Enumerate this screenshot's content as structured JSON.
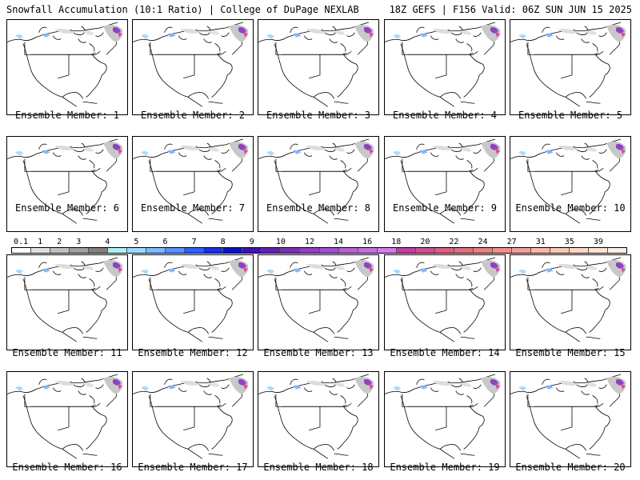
{
  "header": {
    "left": "Snowfall Accumulation (10:1 Ratio) | College of DuPage NEXLAB",
    "right": "18Z GEFS | F156 Valid: 06Z SUN JUN 15 2025"
  },
  "panels": [
    {
      "label": "Ensemble Member: 1"
    },
    {
      "label": "Ensemble Member: 2"
    },
    {
      "label": "Ensemble Member: 3"
    },
    {
      "label": "Ensemble Member: 4"
    },
    {
      "label": "Ensemble Member: 5"
    },
    {
      "label": "Ensemble Member: 6"
    },
    {
      "label": "Ensemble Member: 7"
    },
    {
      "label": "Ensemble Member: 8"
    },
    {
      "label": "Ensemble Member: 9"
    },
    {
      "label": "Ensemble Member: 10"
    },
    {
      "label": "Ensemble Member: 11"
    },
    {
      "label": "Ensemble Member: 12"
    },
    {
      "label": "Ensemble Member: 13"
    },
    {
      "label": "Ensemble Member: 14"
    },
    {
      "label": "Ensemble Member: 15"
    },
    {
      "label": "Ensemble Member: 16"
    },
    {
      "label": "Ensemble Member: 17"
    },
    {
      "label": "Ensemble Member: 18"
    },
    {
      "label": "Ensemble Member: 19"
    },
    {
      "label": "Ensemble Member: 20"
    }
  ],
  "colorbar": {
    "ticks": [
      "0.1",
      "1",
      "2",
      "3",
      "4",
      "5",
      "6",
      "7",
      "8",
      "9",
      "10",
      "12",
      "14",
      "16",
      "18",
      "20",
      "22",
      "24",
      "27",
      "31",
      "35",
      "39"
    ],
    "colors": [
      "#ffffff",
      "#e0e0e0",
      "#c0c0c0",
      "#a0a0a0",
      "#808080",
      "#b0f0f0",
      "#a0d8ff",
      "#80b8ff",
      "#5c90ff",
      "#3060ff",
      "#1a30e0",
      "#1010c0",
      "#4010b0",
      "#6020b0",
      "#7a30b8",
      "#9040c0",
      "#a050d0",
      "#b860d8",
      "#c070e0",
      "#d080e8",
      "#c040a0",
      "#d05090",
      "#e06080",
      "#e07080",
      "#e88080",
      "#f09090",
      "#f0a0a0",
      "#f8b8a8",
      "#f8c8b8",
      "#fad8c8",
      "#fce4d4",
      "#fef0e4"
    ]
  }
}
